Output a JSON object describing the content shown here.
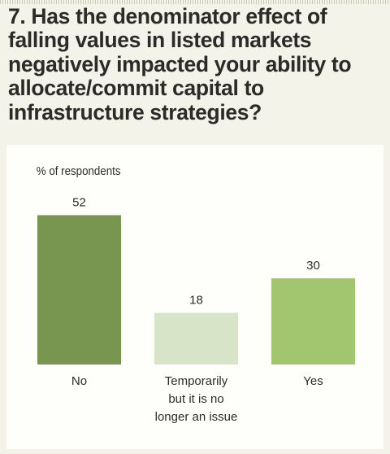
{
  "title": "7. Has the denominator effect of falling values in listed markets negatively impacted your ability to allocate/commit capital to infrastructure strategies?",
  "chart_data": {
    "type": "bar",
    "ylabel": "% of respondents",
    "ylim": [
      0,
      60
    ],
    "grid": false,
    "categories": [
      "No",
      "Temporarily but it is no longer an issue",
      "Yes"
    ],
    "category_lines": [
      [
        "No"
      ],
      [
        "Temporarily",
        "but it is no",
        "longer an issue"
      ],
      [
        "Yes"
      ]
    ],
    "values": [
      52,
      18,
      30
    ],
    "colors": [
      "#789650",
      "#d8e4c8",
      "#a2c570"
    ]
  }
}
